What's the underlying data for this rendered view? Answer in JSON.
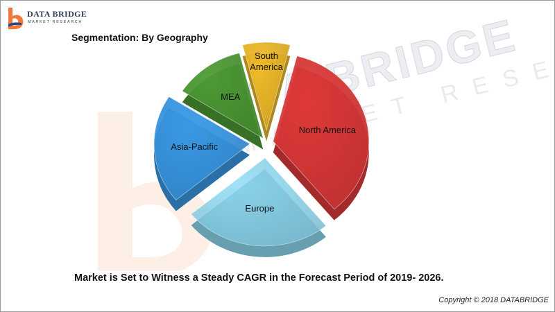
{
  "logo": {
    "brand_name": "DATA BRIDGE",
    "brand_sub": "MARKET RESEARCH"
  },
  "chart_data": {
    "type": "pie",
    "title": "Segmentation: By Geography",
    "categories": [
      "North America",
      "Europe",
      "Asia-Pacific",
      "MEA",
      "South America"
    ],
    "values": [
      35,
      25,
      20,
      12,
      8
    ],
    "colors": [
      "#e23a3a",
      "#8fdcf5",
      "#3a9be8",
      "#4e9c35",
      "#f2bd2a"
    ]
  },
  "headline": "Market is Set to Witness a Steady CAGR in the Forecast Period of 2019- 2026.",
  "copyright": "Copyright © 2018 DATABRIDGE",
  "watermark": {
    "main": "DATA BRIDGE",
    "sub": "MARKET RESEARCH"
  }
}
